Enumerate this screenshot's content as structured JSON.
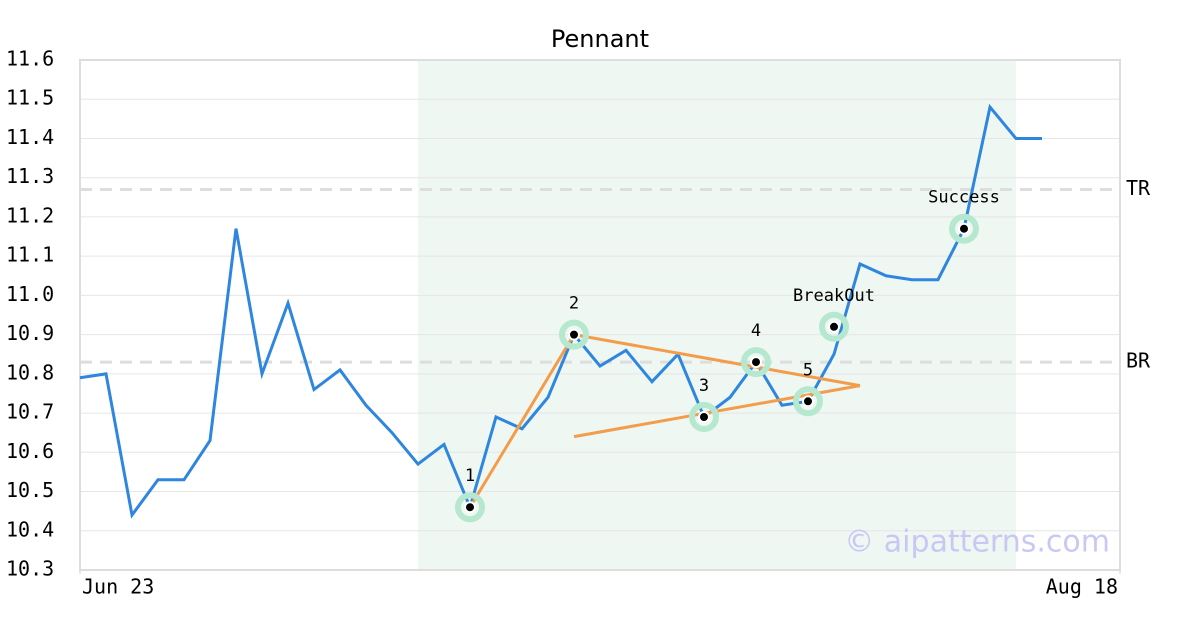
{
  "chart_data": {
    "type": "line",
    "title": "Pennant",
    "x": [
      0,
      1,
      2,
      3,
      4,
      5,
      6,
      7,
      8,
      9,
      10,
      11,
      12,
      13,
      14,
      15,
      16,
      17,
      18,
      19,
      20,
      21,
      22,
      23,
      24,
      25,
      26,
      27,
      28,
      29,
      30,
      31,
      32,
      33,
      34,
      35,
      36,
      37
    ],
    "series": [
      {
        "color": "#2e86de",
        "values": [
          10.79,
          10.8,
          10.44,
          10.53,
          10.53,
          10.63,
          11.17,
          10.8,
          10.98,
          10.76,
          10.81,
          10.72,
          10.65,
          10.57,
          10.62,
          10.46,
          10.69,
          10.66,
          10.74,
          10.9,
          10.82,
          10.86,
          10.78,
          10.85,
          10.69,
          10.74,
          10.83,
          10.72,
          10.73,
          10.85,
          11.08,
          11.05,
          11.04,
          11.04,
          11.17,
          11.48,
          11.4,
          11.4
        ]
      }
    ],
    "xlim": [
      0,
      40
    ],
    "xticks": [
      {
        "value": 0,
        "label": "Jun 23"
      },
      {
        "value": 40,
        "label": "Aug 18"
      }
    ],
    "ylim": [
      10.3,
      11.6
    ],
    "yticks": [
      10.3,
      10.4,
      10.5,
      10.6,
      10.7,
      10.8,
      10.9,
      {
        "value": 11,
        "label": "11.0"
      },
      11.1,
      11.2,
      11.3,
      11.4,
      11.5,
      11.6
    ],
    "grid": true,
    "shaded_range": [
      13,
      36
    ],
    "shade_color": "#eef7f2",
    "hlines": [
      {
        "label": "TR",
        "value": 11.27
      },
      {
        "label": "BR",
        "value": 10.83
      }
    ],
    "trend_color": "#f39c4a",
    "trend_lines": [
      {
        "x": [
          15,
          19
        ],
        "y": [
          10.46,
          10.9
        ]
      },
      {
        "x": [
          19,
          30
        ],
        "y": [
          10.9,
          10.77
        ]
      },
      {
        "x": [
          19,
          30
        ],
        "y": [
          10.64,
          10.77
        ]
      }
    ],
    "marker_color": "#b5e8cf",
    "points": [
      {
        "label": "1",
        "x": 15,
        "y": 10.46
      },
      {
        "label": "2",
        "x": 19,
        "y": 10.9
      },
      {
        "label": "3",
        "x": 24,
        "y": 10.69
      },
      {
        "label": "4",
        "x": 26,
        "y": 10.83
      },
      {
        "label": "5",
        "x": 28,
        "y": 10.73
      },
      {
        "label": "BreakOut",
        "x": 29,
        "y": 10.92
      },
      {
        "label": "Success",
        "x": 34,
        "y": 11.17
      }
    ],
    "watermark": "© aipatterns.com"
  }
}
